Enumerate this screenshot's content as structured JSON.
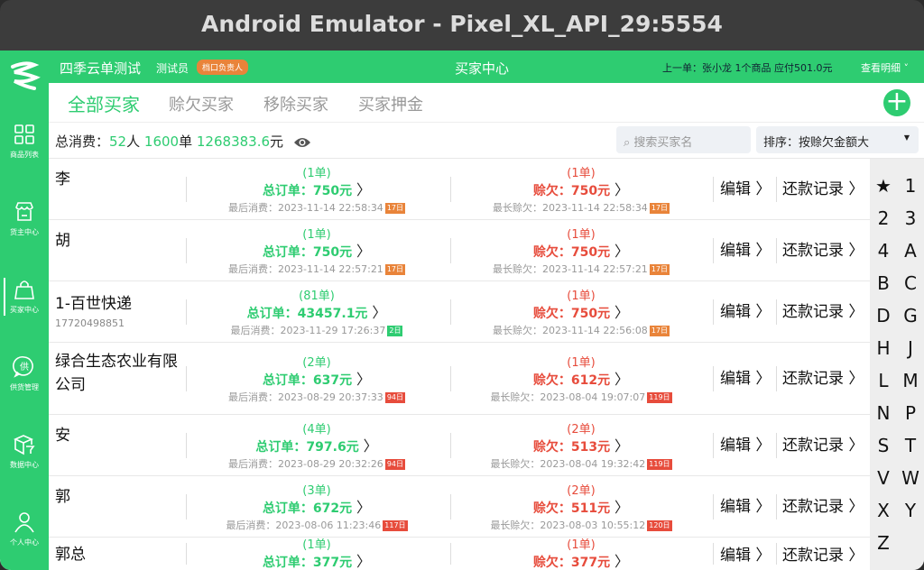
{
  "window_title": "Android Emulator - Pixel_XL_API_29:5554",
  "sidebar": {
    "items": [
      {
        "label": "商品列表",
        "icon": "grid-icon"
      },
      {
        "label": "货主中心",
        "icon": "store-icon"
      },
      {
        "label": "买家中心",
        "icon": "bag-icon",
        "active": true
      },
      {
        "label": "供货管理",
        "icon": "supply-icon"
      },
      {
        "label": "数据中心",
        "icon": "box-icon"
      },
      {
        "label": "个人中心",
        "icon": "user-icon"
      }
    ]
  },
  "header": {
    "brand": "四季云单测试",
    "role": "测试员",
    "badge": "档口负责人",
    "title": "买家中心",
    "last_order": "上一单：张小龙  1个商品  应付501.0元",
    "detail": "查看明细 ˅"
  },
  "tabs": [
    {
      "label": "全部买家",
      "active": true
    },
    {
      "label": "赊欠买家"
    },
    {
      "label": "移除买家"
    },
    {
      "label": "买家押金"
    }
  ],
  "summary": {
    "label": "总消费：",
    "people": "52",
    "people_unit": "人",
    "orders": "1600",
    "orders_unit": "单",
    "amount": "1268383.6",
    "amount_unit": "元"
  },
  "search": {
    "placeholder": "搜索买家名"
  },
  "sort": {
    "value": "排序：按赊欠金额大"
  },
  "actions": {
    "edit": "编辑",
    "records": "还款记录"
  },
  "colors": {
    "green": "#2ecc71",
    "red": "#e74c3c",
    "orange": "#e9843a"
  },
  "rows": [
    {
      "name": "李",
      "phone": "",
      "tcnt": "(1单)",
      "total": "总订单：750元",
      "last": "最后消费：2023-11-14 22:58:34",
      "ltag": "17日",
      "ltagc": "#e9843a",
      "dcnt": "(1单)",
      "debt": "赊欠：750元",
      "longest": "最长赊欠：2023-11-14 22:58:34",
      "dtag": "17日",
      "dtagc": "#e9843a"
    },
    {
      "name": "胡",
      "phone": "",
      "tcnt": "(1单)",
      "total": "总订单：750元",
      "last": "最后消费：2023-11-14 22:57:21",
      "ltag": "17日",
      "ltagc": "#e9843a",
      "dcnt": "(1单)",
      "debt": "赊欠：750元",
      "longest": "最长赊欠：2023-11-14 22:57:21",
      "dtag": "17日",
      "dtagc": "#e9843a"
    },
    {
      "name": "1-百世快递",
      "phone": "17720498851",
      "tcnt": "(81单)",
      "total": "总订单：43457.1元",
      "last": "最后消费：2023-11-29 17:26:37",
      "ltag": "2日",
      "ltagc": "#2ecc71",
      "dcnt": "(1单)",
      "debt": "赊欠：750元",
      "longest": "最长赊欠：2023-11-14 22:56:08",
      "dtag": "17日",
      "dtagc": "#e9843a"
    },
    {
      "name": "绿合生态农业有限公司",
      "phone": "",
      "tcnt": "(2单)",
      "total": "总订单：637元",
      "last": "最后消费：2023-08-29 20:37:33",
      "ltag": "94日",
      "ltagc": "#e74c3c",
      "dcnt": "(1单)",
      "debt": "赊欠：612元",
      "longest": "最长赊欠：2023-08-04 19:07:07",
      "dtag": "119日",
      "dtagc": "#e74c3c"
    },
    {
      "name": "安",
      "phone": "",
      "tcnt": "(4单)",
      "total": "总订单：797.6元",
      "last": "最后消费：2023-08-29 20:32:26",
      "ltag": "94日",
      "ltagc": "#e74c3c",
      "dcnt": "(2单)",
      "debt": "赊欠：513元",
      "longest": "最长赊欠：2023-08-04 19:32:42",
      "dtag": "119日",
      "dtagc": "#e74c3c"
    },
    {
      "name": "郭",
      "phone": "",
      "tcnt": "(3单)",
      "total": "总订单：672元",
      "last": "最后消费：2023-08-06 11:23:46",
      "ltag": "117日",
      "ltagc": "#e74c3c",
      "dcnt": "(2单)",
      "debt": "赊欠：511元",
      "longest": "最长赊欠：2023-08-03 10:55:12",
      "dtag": "120日",
      "dtagc": "#e74c3c"
    },
    {
      "name": "郭总",
      "phone": "",
      "tcnt": "(1单)",
      "total": "总订单：377元",
      "last": "",
      "ltag": "",
      "ltagc": "",
      "dcnt": "(1单)",
      "debt": "赊欠：377元",
      "longest": "",
      "dtag": "",
      "dtagc": ""
    }
  ],
  "index": [
    "★",
    "1",
    "2",
    "3",
    "4",
    "A",
    "B",
    "C",
    "D",
    "G",
    "H",
    "J",
    "L",
    "M",
    "N",
    "P",
    "S",
    "T",
    "V",
    "W",
    "X",
    "Y",
    "Z"
  ]
}
